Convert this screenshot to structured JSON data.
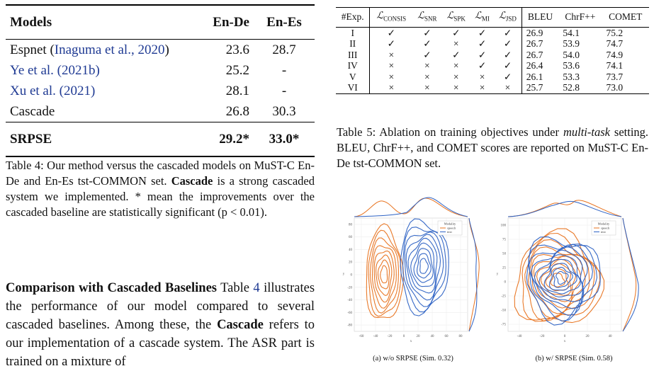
{
  "table4": {
    "header": [
      "Models",
      "En-De",
      "En-Es"
    ],
    "rows": [
      {
        "model": "Espnet",
        "cite": "Inaguma et al., 2020",
        "en_de": "23.6",
        "en_es": "28.7"
      },
      {
        "model": "",
        "cite": "Ye et al. (2021b)",
        "en_de": "25.2",
        "en_es": "-"
      },
      {
        "model": "",
        "cite": "Xu et al. (2021)",
        "en_de": "28.1",
        "en_es": "-"
      },
      {
        "model": "Cascade",
        "cite": "",
        "en_de": "26.8",
        "en_es": "30.3"
      }
    ],
    "last": {
      "model": "SRPSE",
      "en_de": "29.2*",
      "en_es": "33.0*"
    }
  },
  "caption4": {
    "prefix": "Table 4: Our method versus the cascaded models on MuST-C En-De and En-Es tst-COMMON set.",
    "bold": "Cascade",
    "suffix": "is a strong cascaded system we implemented. * mean the improvements over the cascaded baseline are statistically significant (p < 0.01)."
  },
  "paragraph": {
    "heading": "Comparison with Cascaded Baselines",
    "t1": "Table",
    "ref": "4",
    "t2": "illustrates the performance of our model compared to several cascaded baselines. Among these, the",
    "bold": "Cascade",
    "t3": "refers to our implementation of a cascade system. The ASR part is trained on a mixture of"
  },
  "table5": {
    "exp_label": "#Exp.",
    "losses": [
      {
        "sym": "ℒ",
        "sub": "CONSIS"
      },
      {
        "sym": "ℒ",
        "sub": "SNR"
      },
      {
        "sym": "ℒ",
        "sub": "SPK"
      },
      {
        "sym": "ℒ",
        "sub": "MI"
      },
      {
        "sym": "ℒ",
        "sub": "JSD"
      }
    ],
    "metrics": [
      "BLEU",
      "ChrF++",
      "COMET"
    ],
    "rows": [
      {
        "exp": "I",
        "marks": [
          "✓",
          "✓",
          "✓",
          "✓",
          "✓"
        ],
        "bleu": "26.9",
        "chrf": "54.1",
        "comet": "75.2"
      },
      {
        "exp": "II",
        "marks": [
          "✓",
          "✓",
          "×",
          "✓",
          "✓"
        ],
        "bleu": "26.7",
        "chrf": "53.9",
        "comet": "74.7"
      },
      {
        "exp": "III",
        "marks": [
          "×",
          "✓",
          "✓",
          "✓",
          "✓"
        ],
        "bleu": "26.7",
        "chrf": "54.0",
        "comet": "74.9"
      },
      {
        "exp": "IV",
        "marks": [
          "×",
          "×",
          "×",
          "✓",
          "✓"
        ],
        "bleu": "26.4",
        "chrf": "53.6",
        "comet": "74.1"
      },
      {
        "exp": "V",
        "marks": [
          "×",
          "×",
          "×",
          "×",
          "✓"
        ],
        "bleu": "26.1",
        "chrf": "53.3",
        "comet": "73.7"
      },
      {
        "exp": "VI",
        "marks": [
          "×",
          "×",
          "×",
          "×",
          "×"
        ],
        "bleu": "25.7",
        "chrf": "52.8",
        "comet": "73.0"
      }
    ]
  },
  "caption5": {
    "prefix": "Table 5: Ablation on training objectives under",
    "italic": "multi-task",
    "suffix": "setting. BLEU, ChrF++, and COMET scores are reported on MuST-C En-De tst-COMMON set."
  },
  "figures": {
    "left": {
      "caption": "(a) w/o SRPSE (Sim. 0.32)",
      "xlabel": "x",
      "ylabel": "y",
      "xticks": [
        "-60",
        "-40",
        "-20",
        "0",
        "20",
        "40",
        "60",
        "80"
      ],
      "yticks": [
        "80",
        "60",
        "40",
        "20",
        "0",
        "-20",
        "-40",
        "-60",
        "-80"
      ]
    },
    "right": {
      "caption": "(b) w/ SRPSE (Sim. 0.58)",
      "xlabel": "x",
      "ylabel": "y",
      "xticks": [
        "-40",
        "-20",
        "0",
        "20",
        "40"
      ],
      "yticks": [
        "100",
        "75",
        "50",
        "25",
        "0",
        "-25",
        "-50",
        "-75"
      ]
    },
    "legend": {
      "title": "Modality",
      "speech": "speech",
      "text": "text"
    },
    "colors": {
      "speech": "#e8731f",
      "text": "#2d62c4"
    }
  }
}
